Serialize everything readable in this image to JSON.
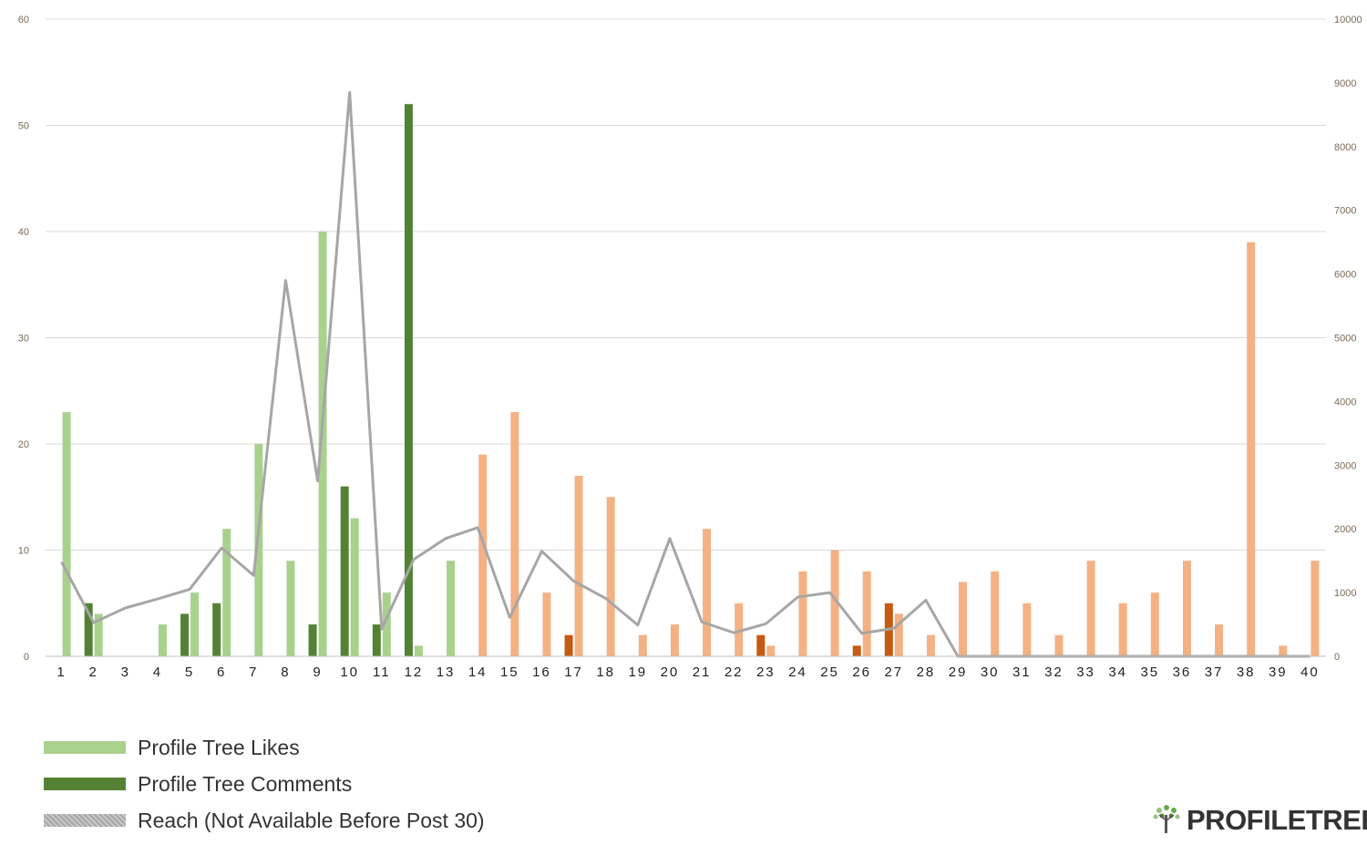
{
  "chart_data": {
    "type": "bar",
    "categories": [
      "1",
      "2",
      "3",
      "4",
      "5",
      "6",
      "7",
      "8",
      "9",
      "10",
      "11",
      "12",
      "13",
      "14",
      "15",
      "16",
      "17",
      "18",
      "19",
      "20",
      "21",
      "22",
      "23",
      "24",
      "25",
      "26",
      "27",
      "28",
      "29",
      "30",
      "31",
      "32",
      "33",
      "34",
      "35",
      "36",
      "37",
      "38",
      "39",
      "40"
    ],
    "series": [
      {
        "name": "Profile Tree Likes",
        "kind": "bar",
        "axis": "left",
        "values": [
          23,
          4,
          0,
          3,
          6,
          12,
          20,
          9,
          40,
          13,
          6,
          1,
          9,
          19,
          23,
          6,
          17,
          15,
          2,
          3,
          12,
          5,
          1,
          8,
          10,
          8,
          4,
          2,
          7,
          8,
          5,
          2,
          9,
          5,
          6,
          9,
          3,
          39,
          1,
          9
        ]
      },
      {
        "name": "Profile Tree Comments",
        "kind": "bar",
        "axis": "left",
        "values": [
          0,
          5,
          0,
          0,
          4,
          5,
          0,
          0,
          3,
          16,
          3,
          52,
          0,
          0,
          0,
          0,
          2,
          0,
          0,
          0,
          0,
          0,
          2,
          0,
          0,
          1,
          5,
          0,
          0,
          0,
          0,
          0,
          0,
          0,
          0,
          0,
          0,
          0,
          0,
          0
        ]
      },
      {
        "name": "Reach (Not Available Before Post 30)",
        "kind": "line",
        "axis": "right",
        "values": [
          1480,
          530,
          760,
          900,
          1050,
          1700,
          1270,
          5900,
          2750,
          8850,
          430,
          1520,
          1850,
          2020,
          610,
          1650,
          1180,
          910,
          490,
          1850,
          540,
          370,
          510,
          930,
          1000,
          360,
          440,
          880,
          0,
          0,
          0,
          0,
          0,
          0,
          0,
          0,
          0,
          0,
          0,
          0
        ]
      }
    ],
    "post_30_reach_note": "Reach (Not Available Before Post 30)",
    "ylim_left": [
      0,
      60
    ],
    "yticks_left": [
      0,
      10,
      20,
      30,
      40,
      50,
      60
    ],
    "ylim_right": [
      0,
      10000
    ],
    "yticks_right": [
      0,
      1000,
      2000,
      3000,
      4000,
      5000,
      6000,
      7000,
      8000,
      9000,
      10000
    ],
    "grid": true,
    "legend_position": "bottom-left",
    "colors": {
      "likes_early": "#a9d18e",
      "comments_early": "#548235",
      "likes_late": "#f4b183",
      "comments_late": "#c55a11",
      "reach": "#a6a6a6",
      "grid": "#d9d9d9"
    },
    "color_switch_after_post": 13
  },
  "legend": {
    "items": [
      {
        "label": "Profile Tree Likes",
        "color": "#a9d18e"
      },
      {
        "label": "Profile Tree Comments",
        "color": "#548235"
      },
      {
        "label": "Reach (Not Available Before Post 30)",
        "color": "#a6a6a6"
      }
    ]
  },
  "logo": {
    "text": "PROFILETREE",
    "icon": "tree-icon"
  }
}
